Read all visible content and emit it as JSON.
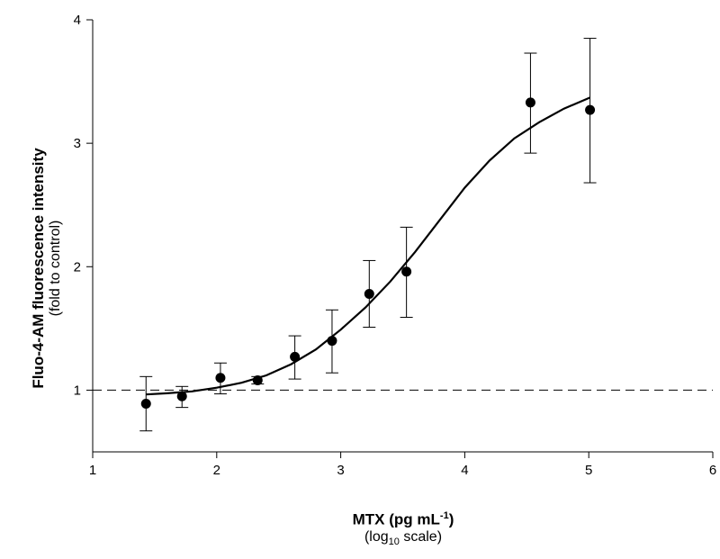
{
  "chart_data": {
    "type": "scatter",
    "xlabel": "MTX (pg mL",
    "xlabel_sup": "-1",
    "xlabel_close": ")",
    "xlabel_sub_pre": "(log",
    "xlabel_sub_sub": "10",
    "xlabel_sub_post": " scale)",
    "ylabel": "Fluo-4-AM fluorescence intensity",
    "ylabel_sub": "(fold to control)",
    "xlim": [
      1,
      6
    ],
    "ylim": [
      0.5,
      4
    ],
    "x_ticks": [
      "1",
      "2",
      "3",
      "4",
      "5",
      "6"
    ],
    "y_ticks": [
      "1",
      "2",
      "3",
      "4"
    ],
    "reference_line": {
      "y": 1,
      "style": "dashed"
    },
    "series": [
      {
        "points": [
          {
            "x": 1.43,
            "y": 0.89,
            "err_low": 0.67,
            "err_high": 1.11
          },
          {
            "x": 1.72,
            "y": 0.95,
            "err_low": 0.86,
            "err_high": 1.03
          },
          {
            "x": 2.03,
            "y": 1.1,
            "err_low": 0.97,
            "err_high": 1.22
          },
          {
            "x": 2.33,
            "y": 1.08,
            "err_low": 1.05,
            "err_high": 1.11
          },
          {
            "x": 2.63,
            "y": 1.27,
            "err_low": 1.09,
            "err_high": 1.44
          },
          {
            "x": 2.93,
            "y": 1.4,
            "err_low": 1.14,
            "err_high": 1.65
          },
          {
            "x": 3.23,
            "y": 1.78,
            "err_low": 1.51,
            "err_high": 2.05
          },
          {
            "x": 3.53,
            "y": 1.96,
            "err_low": 1.59,
            "err_high": 2.32
          },
          {
            "x": 4.53,
            "y": 3.33,
            "err_low": 2.92,
            "err_high": 3.73
          },
          {
            "x": 5.01,
            "y": 3.27,
            "err_low": 2.68,
            "err_high": 3.85
          }
        ]
      }
    ],
    "fit_curve": [
      [
        1.43,
        0.965
      ],
      [
        1.6,
        0.975
      ],
      [
        1.8,
        0.99
      ],
      [
        2.0,
        1.02
      ],
      [
        2.2,
        1.06
      ],
      [
        2.4,
        1.12
      ],
      [
        2.6,
        1.21
      ],
      [
        2.8,
        1.33
      ],
      [
        3.0,
        1.49
      ],
      [
        3.2,
        1.67
      ],
      [
        3.4,
        1.88
      ],
      [
        3.6,
        2.12
      ],
      [
        3.8,
        2.38
      ],
      [
        4.0,
        2.64
      ],
      [
        4.2,
        2.86
      ],
      [
        4.4,
        3.04
      ],
      [
        4.6,
        3.17
      ],
      [
        4.8,
        3.28
      ],
      [
        5.01,
        3.37
      ]
    ],
    "grid": false
  }
}
